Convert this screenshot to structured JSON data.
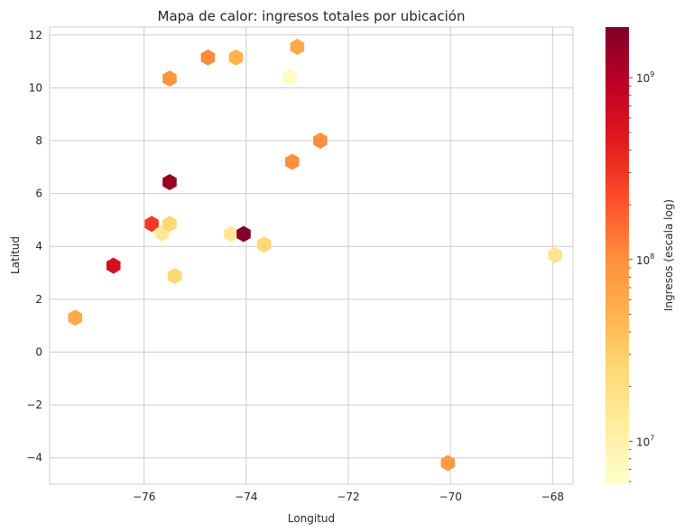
{
  "chart_data": {
    "type": "heatmap",
    "subtype": "hexbin",
    "title": "Mapa de calor: ingresos totales por ubicación",
    "xlabel": "Longitud",
    "ylabel": "Latitud",
    "xlim": [
      -77.85,
      -67.6
    ],
    "ylim": [
      -5.0,
      12.3
    ],
    "xticks": [
      -76,
      -74,
      -72,
      -70,
      -68
    ],
    "xtick_labels": [
      "−76",
      "−74",
      "−72",
      "−70",
      "−68"
    ],
    "yticks": [
      -4,
      -2,
      0,
      2,
      4,
      6,
      8,
      10,
      12
    ],
    "ytick_labels": [
      "−4",
      "−2",
      "0",
      "2",
      "4",
      "6",
      "8",
      "10",
      "12"
    ],
    "grid": true,
    "colormap": "YlOrRd",
    "colorbar": {
      "label": "Ingresos (escala log)",
      "scale": "log",
      "min": 5800000,
      "max": 1900000000,
      "major_ticks": [
        10000000,
        100000000,
        1000000000
      ],
      "major_labels": [
        {
          "base": "10",
          "exp": "7"
        },
        {
          "base": "10",
          "exp": "8"
        },
        {
          "base": "10",
          "exp": "9"
        }
      ]
    },
    "points": [
      {
        "x": -77.35,
        "y": 1.3,
        "value": 60000000
      },
      {
        "x": -76.6,
        "y": 3.27,
        "value": 600000000
      },
      {
        "x": -75.85,
        "y": 4.85,
        "value": 280000000
      },
      {
        "x": -75.65,
        "y": 4.5,
        "value": 14000000
      },
      {
        "x": -75.5,
        "y": 4.85,
        "value": 25000000
      },
      {
        "x": -75.5,
        "y": 6.43,
        "value": 1500000000
      },
      {
        "x": -75.5,
        "y": 10.35,
        "value": 90000000
      },
      {
        "x": -75.4,
        "y": 2.88,
        "value": 25000000
      },
      {
        "x": -74.75,
        "y": 11.15,
        "value": 110000000
      },
      {
        "x": -74.3,
        "y": 4.47,
        "value": 14000000
      },
      {
        "x": -74.2,
        "y": 11.15,
        "value": 50000000
      },
      {
        "x": -74.05,
        "y": 4.47,
        "value": 1800000000
      },
      {
        "x": -73.65,
        "y": 4.07,
        "value": 25000000
      },
      {
        "x": -73.15,
        "y": 10.4,
        "value": 6500000
      },
      {
        "x": -73.1,
        "y": 7.2,
        "value": 100000000
      },
      {
        "x": -73.0,
        "y": 11.55,
        "value": 60000000
      },
      {
        "x": -72.55,
        "y": 8.0,
        "value": 100000000
      },
      {
        "x": -70.05,
        "y": -4.2,
        "value": 80000000
      },
      {
        "x": -67.95,
        "y": 3.67,
        "value": 16000000
      }
    ]
  }
}
